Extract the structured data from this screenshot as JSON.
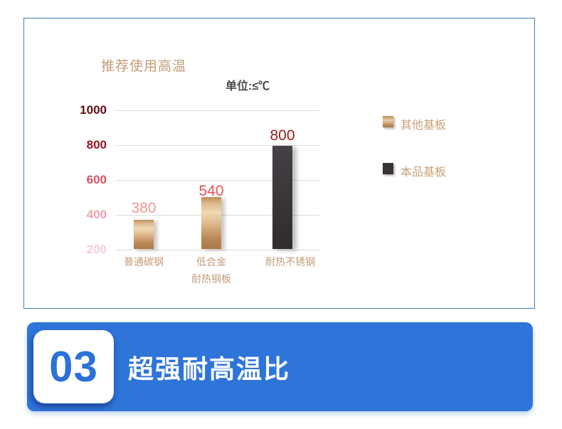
{
  "chart_data": {
    "type": "bar",
    "title": "推荐使用高温",
    "unit_label": "单位:≤℃",
    "categories": [
      "普通碳钢",
      "低合金耐热钢板",
      "耐热不锈钢"
    ],
    "category_lines": [
      [
        "普通碳钢"
      ],
      [
        "低合金",
        "耐热钢板"
      ],
      [
        "耐热不锈钢"
      ]
    ],
    "values": [
      380,
      540,
      800
    ],
    "value_label_colors": [
      "#ee9a96",
      "#e05656",
      "#9b1b1b"
    ],
    "bar_styles": [
      "gold",
      "gold",
      "dark"
    ],
    "ylim": [
      200,
      1000
    ],
    "yticks": [
      {
        "value": 1000,
        "color": "#5f0d12"
      },
      {
        "value": 800,
        "color": "#97121e"
      },
      {
        "value": 600,
        "color": "#d8505f"
      },
      {
        "value": 400,
        "color": "#eda3ab"
      },
      {
        "value": 200,
        "color": "#f5cdd1"
      }
    ],
    "grid": true,
    "legend_position": "right",
    "legend": [
      {
        "label": "其他基板",
        "swatch": "gold-gradient"
      },
      {
        "label": "本品基板",
        "swatch": "#3a3438"
      }
    ]
  },
  "banner": {
    "number": "03",
    "title": "超强耐高温比"
  },
  "colors": {
    "banner_blue": "#2e74d9",
    "panel_border": "#3e7fb4",
    "axis_text_tan": "#c49d78",
    "legend_text_tan": "#c9a179",
    "unit_text": "#4b4b4b",
    "gridline": "#dcdcdc",
    "gold_bar_light": "#efd8b1",
    "gold_bar_dark": "#a8784a",
    "dark_bar": "#3a3438"
  }
}
